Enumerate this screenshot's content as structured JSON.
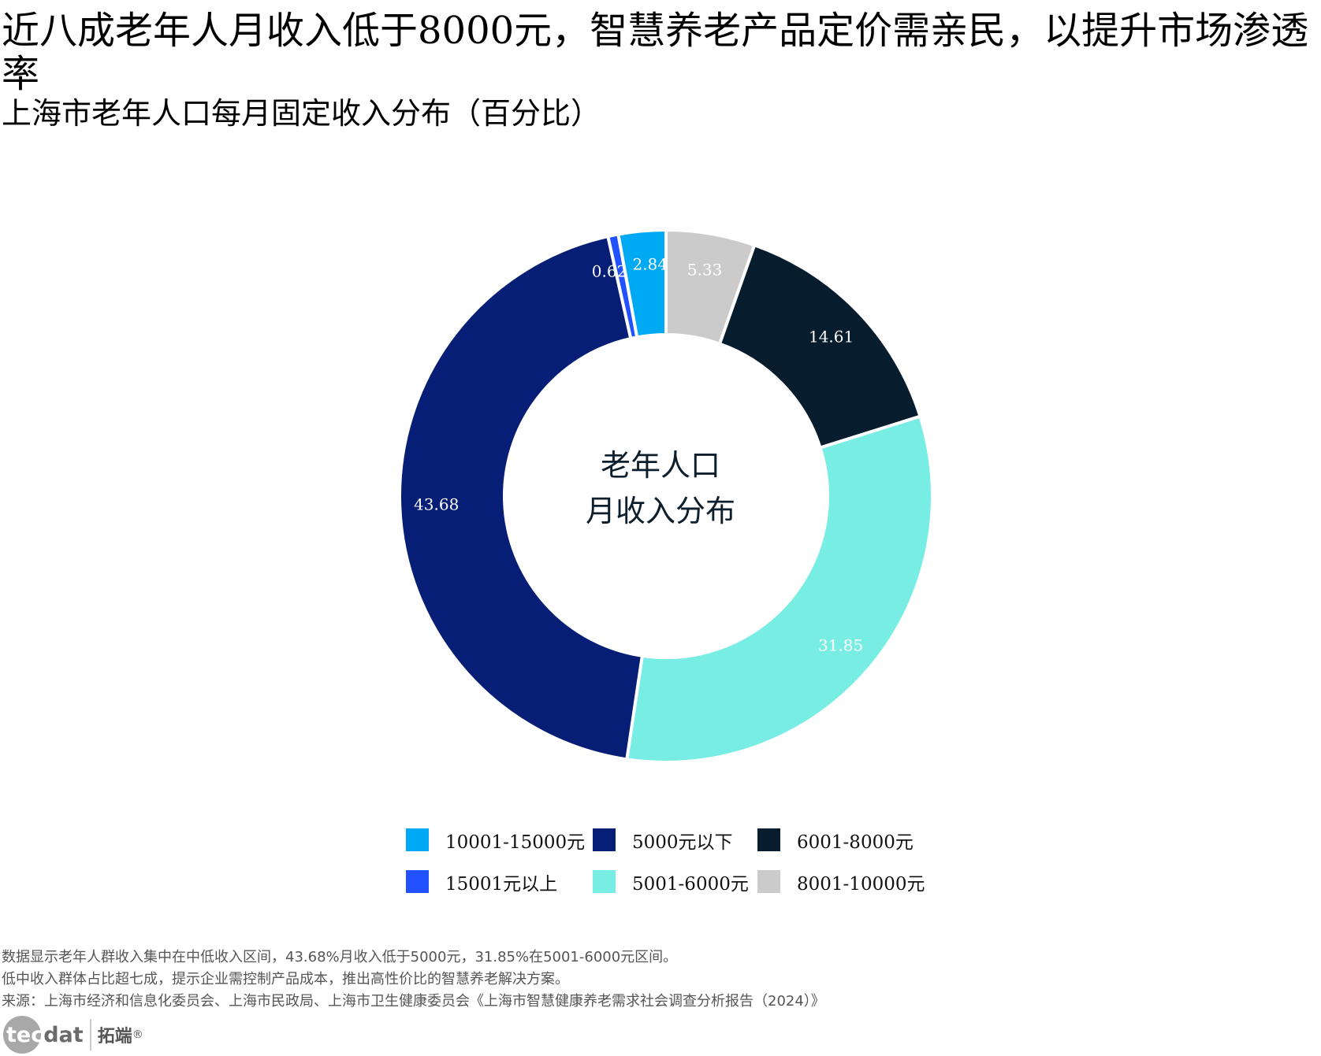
{
  "header": {
    "title": "近八成老年人月收入低于8000元，智慧养老产品定价需亲民，以提升市场渗透率",
    "subtitle": "上海市老年人口每月固定收入分布（百分比）"
  },
  "chart_data": {
    "type": "pie",
    "variant": "donut",
    "title": "上海市老年人口每月固定收入分布（百分比）",
    "center_label": [
      "老年人口",
      "月收入分布"
    ],
    "start_angle": "12 o'clock",
    "direction": "clockwise",
    "categories": [
      "8001-10000元",
      "6001-8000元",
      "5001-6000元",
      "5000元以下",
      "15001元以上",
      "10001-15000元"
    ],
    "values": [
      5.33,
      14.61,
      31.85,
      43.68,
      0.62,
      2.84
    ],
    "labels": [
      "5.33",
      "14.61",
      "31.85",
      "43.68",
      "0.62",
      "2.84"
    ],
    "colors": [
      "#cbcbcb",
      "#071d2e",
      "#78ede4",
      "#061e75",
      "#2251ff",
      "#00a9f4"
    ],
    "legend": {
      "position": "bottom",
      "items": [
        {
          "label": "10001-15000元",
          "color": "#00a9f4"
        },
        {
          "label": "5000元以下",
          "color": "#061e75"
        },
        {
          "label": "6001-8000元",
          "color": "#071d2e"
        },
        {
          "label": "15001元以上",
          "color": "#2251ff"
        },
        {
          "label": "5001-6000元",
          "color": "#78ede4"
        },
        {
          "label": "8001-10000元",
          "color": "#cbcbcb"
        }
      ]
    }
  },
  "notes": [
    "数据显示老年人群收入集中在中低收入区间，43.68%月收入低于5000元，31.85%在5001-6000元区间。",
    "低中收入群体占比超七成，提示企业需控制产品成本，推出高性价比的智慧养老解决方案。",
    "来源：上海市经济和信息化委员会、上海市民政局、上海市卫生健康委员会《上海市智慧健康养老需求社会调查分析报告（2024）》"
  ],
  "logo": {
    "word_light": "tec",
    "word_dark": "dat",
    "cn": "拓端",
    "reg": "®"
  }
}
